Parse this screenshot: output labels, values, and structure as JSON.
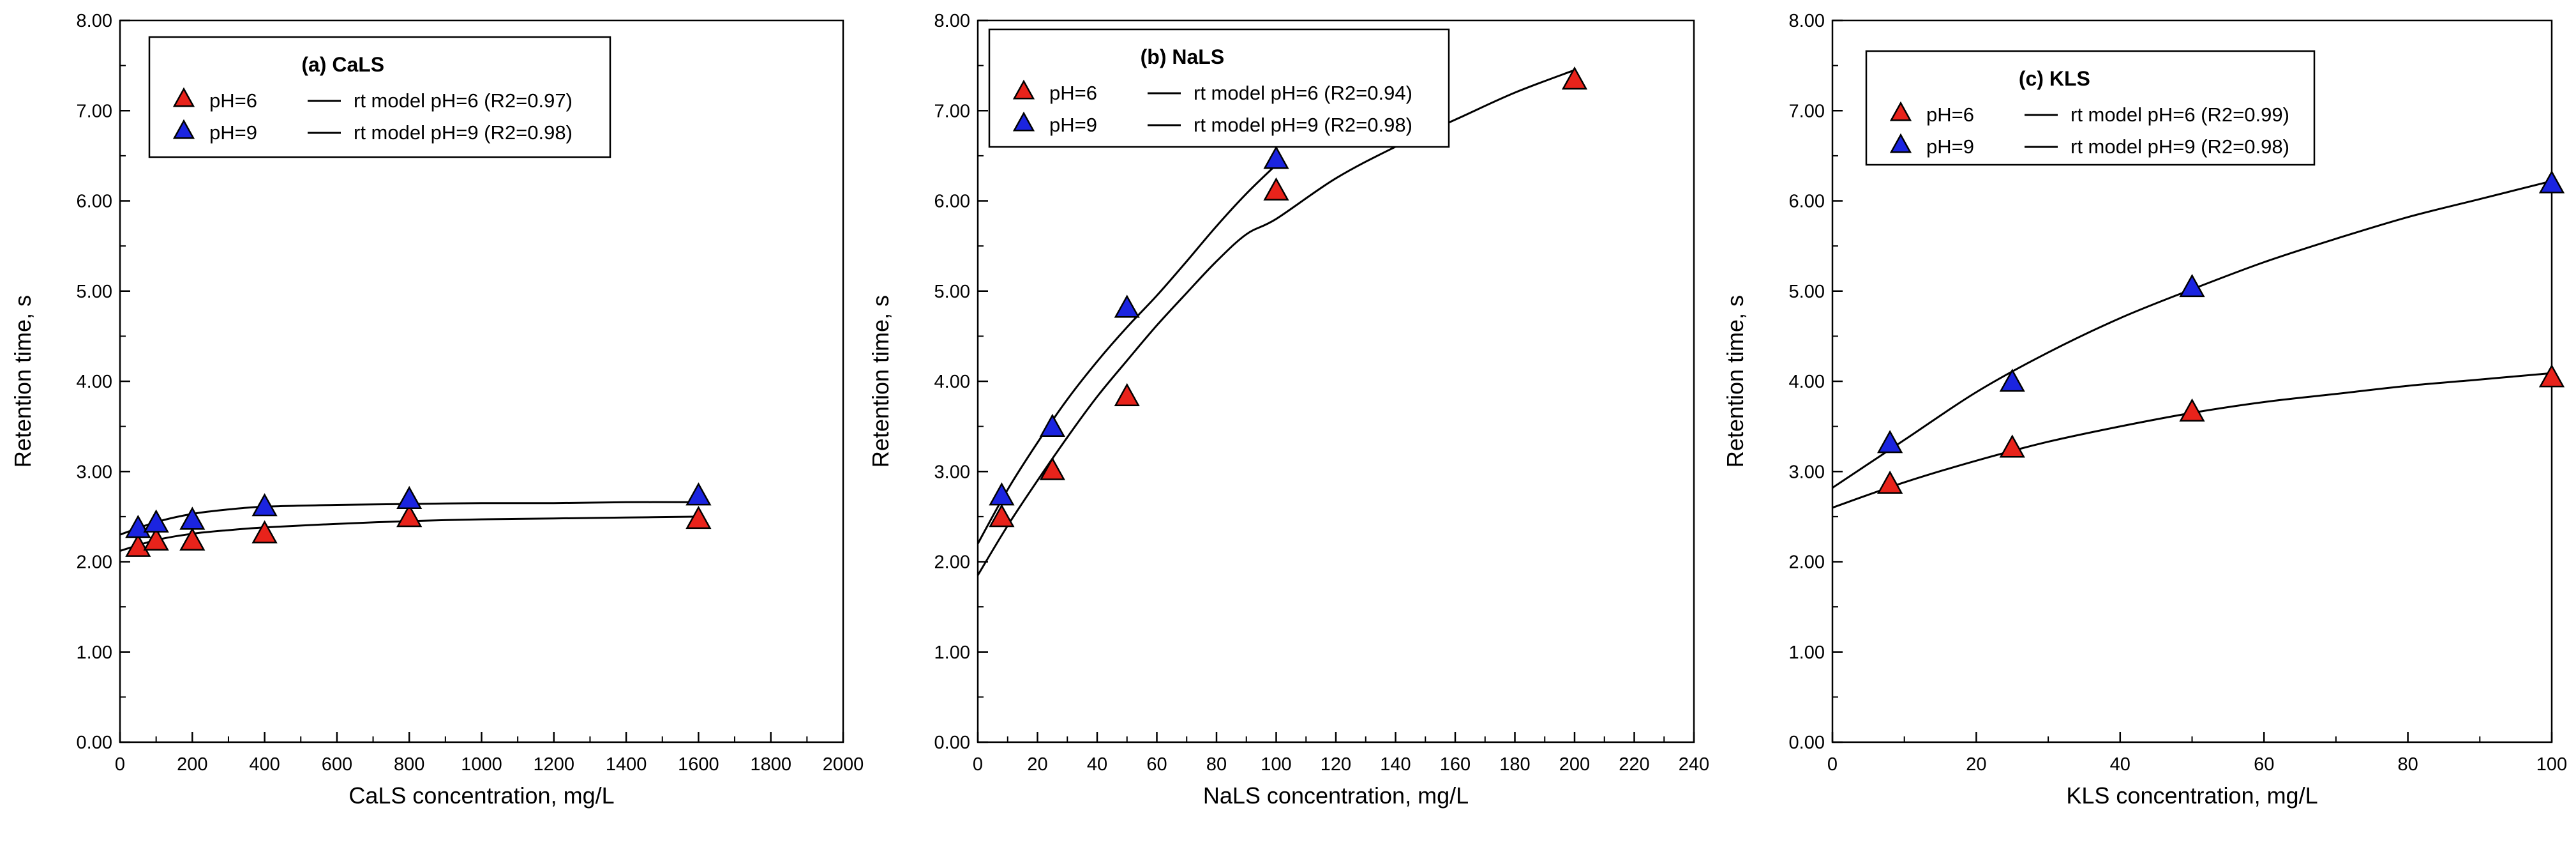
{
  "chart_data": [
    {
      "type": "scatter",
      "title": "(a) CaLS",
      "xlabel": "CaLS concentration, mg/L",
      "ylabel": "Retention time, s",
      "xlim": [
        0,
        2000
      ],
      "ylim": [
        0,
        8
      ],
      "xticks": [
        0,
        200,
        400,
        600,
        800,
        1000,
        1200,
        1400,
        1600,
        1800,
        2000
      ],
      "xtick_labels": [
        "0",
        "200",
        "400",
        "600",
        "800",
        "1000",
        "1200",
        "1400",
        "1600",
        "1800",
        "2000"
      ],
      "yticks": [
        0,
        1,
        2,
        3,
        4,
        5,
        6,
        7,
        8
      ],
      "ytick_labels": [
        "0.00",
        "1.00",
        "2.00",
        "3.00",
        "4.00",
        "5.00",
        "6.00",
        "7.00",
        "8.00"
      ],
      "legend_position": "top-left",
      "series": [
        {
          "name": "pH=6",
          "marker": "triangle",
          "color": "#e8231b",
          "x": [
            50,
            100,
            200,
            400,
            800,
            1600
          ],
          "y": [
            2.15,
            2.22,
            2.22,
            2.3,
            2.48,
            2.46
          ]
        },
        {
          "name": "pH=9",
          "marker": "triangle",
          "color": "#1b24e0",
          "x": [
            50,
            100,
            200,
            400,
            800,
            1600
          ],
          "y": [
            2.36,
            2.42,
            2.45,
            2.6,
            2.68,
            2.72
          ]
        }
      ],
      "models": [
        {
          "name": "rt model pH=6 (R2=0.97)",
          "x": [
            0,
            100,
            200,
            300,
            400,
            600,
            800,
            1000,
            1200,
            1400,
            1600
          ],
          "y": [
            2.12,
            2.24,
            2.31,
            2.35,
            2.38,
            2.42,
            2.45,
            2.47,
            2.48,
            2.49,
            2.5
          ]
        },
        {
          "name": "rt model pH=9 (R2=0.98)",
          "x": [
            0,
            100,
            200,
            300,
            400,
            600,
            800,
            1000,
            1200,
            1400,
            1600
          ],
          "y": [
            2.3,
            2.44,
            2.53,
            2.58,
            2.61,
            2.63,
            2.64,
            2.65,
            2.65,
            2.66,
            2.66
          ]
        }
      ]
    },
    {
      "type": "scatter",
      "title": "(b) NaLS",
      "xlabel": "NaLS concentration, mg/L",
      "ylabel": "Retention time, s",
      "xlim": [
        0,
        240
      ],
      "ylim": [
        0,
        8
      ],
      "xticks": [
        0,
        20,
        40,
        60,
        80,
        100,
        120,
        140,
        160,
        180,
        200,
        220,
        240
      ],
      "xtick_labels": [
        "0",
        "20",
        "40",
        "60",
        "80",
        "100",
        "120",
        "140",
        "160",
        "180",
        "200",
        "220",
        "240"
      ],
      "yticks": [
        0,
        1,
        2,
        3,
        4,
        5,
        6,
        7,
        8
      ],
      "ytick_labels": [
        "0.00",
        "1.00",
        "2.00",
        "3.00",
        "4.00",
        "5.00",
        "6.00",
        "7.00",
        "8.00"
      ],
      "legend_position": "top-center",
      "series": [
        {
          "name": "pH=6",
          "marker": "triangle",
          "color": "#e8231b",
          "x": [
            8,
            25,
            50,
            100,
            200
          ],
          "y": [
            2.48,
            3.0,
            3.82,
            6.1,
            7.33
          ]
        },
        {
          "name": "pH=9",
          "marker": "triangle",
          "color": "#1b24e0",
          "x": [
            8,
            25,
            50,
            100
          ],
          "y": [
            2.72,
            3.48,
            4.8,
            6.45
          ]
        }
      ],
      "models": [
        {
          "name": "rt model pH=6 (R2=0.94)",
          "x": [
            0,
            10,
            20,
            30,
            40,
            50,
            60,
            70,
            80,
            90,
            100,
            120,
            140,
            160,
            180,
            200
          ],
          "y": [
            1.85,
            2.4,
            2.9,
            3.38,
            3.83,
            4.23,
            4.62,
            4.98,
            5.33,
            5.63,
            5.8,
            6.25,
            6.6,
            6.9,
            7.2,
            7.45
          ]
        },
        {
          "name": "rt model pH=9 (R2=0.98)",
          "x": [
            0,
            10,
            20,
            30,
            40,
            50,
            60,
            70,
            80,
            90,
            100
          ],
          "y": [
            2.2,
            2.8,
            3.32,
            3.8,
            4.22,
            4.6,
            4.95,
            5.33,
            5.72,
            6.08,
            6.4
          ]
        }
      ]
    },
    {
      "type": "scatter",
      "title": "(c) KLS",
      "xlabel": "KLS concentration, mg/L",
      "ylabel": "Retention time, s",
      "xlim": [
        0,
        100
      ],
      "ylim": [
        0,
        8
      ],
      "xticks": [
        0,
        20,
        40,
        60,
        80,
        100
      ],
      "xtick_labels": [
        "0",
        "20",
        "40",
        "60",
        "80",
        "100"
      ],
      "yticks": [
        0,
        1,
        2,
        3,
        4,
        5,
        6,
        7,
        8
      ],
      "ytick_labels": [
        "0.00",
        "1.00",
        "2.00",
        "3.00",
        "4.00",
        "5.00",
        "6.00",
        "7.00",
        "8.00"
      ],
      "legend_position": "top-center",
      "series": [
        {
          "name": "pH=6",
          "marker": "triangle",
          "color": "#e8231b",
          "x": [
            8,
            25,
            50,
            100
          ],
          "y": [
            2.85,
            3.25,
            3.65,
            4.03
          ]
        },
        {
          "name": "pH=9",
          "marker": "triangle",
          "color": "#1b24e0",
          "x": [
            8,
            25,
            50,
            100
          ],
          "y": [
            3.3,
            3.98,
            5.03,
            6.18
          ]
        }
      ],
      "models": [
        {
          "name": "rt model pH=6 (R2=0.99)",
          "x": [
            0,
            10,
            20,
            30,
            40,
            50,
            60,
            70,
            80,
            90,
            100
          ],
          "y": [
            2.6,
            2.88,
            3.12,
            3.33,
            3.5,
            3.65,
            3.77,
            3.86,
            3.95,
            4.02,
            4.09
          ]
        },
        {
          "name": "rt model pH=9 (R2=0.98)",
          "x": [
            0,
            10,
            20,
            30,
            40,
            50,
            60,
            70,
            80,
            90,
            100
          ],
          "y": [
            2.82,
            3.35,
            3.88,
            4.32,
            4.7,
            5.02,
            5.32,
            5.58,
            5.82,
            6.02,
            6.22
          ]
        }
      ]
    }
  ]
}
